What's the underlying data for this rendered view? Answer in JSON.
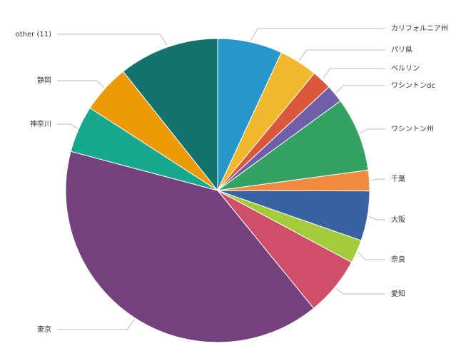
{
  "chart_data": {
    "type": "pie",
    "categories": [
      "カリフォルニア州",
      "パリ県",
      "ベルリン",
      "ワシントンdc",
      "ワシントン州",
      "千葉",
      "大阪",
      "奈良",
      "愛知",
      "東京",
      "神奈川",
      "静岡",
      "other (11)"
    ],
    "values": [
      6.9,
      4.1,
      2.1,
      1.9,
      7.9,
      2.2,
      5.3,
      2.5,
      6.3,
      40.1,
      5.0,
      5.2,
      10.7
    ],
    "colors": [
      "#2796cb",
      "#f2b82c",
      "#d9573a",
      "#6f5fa8",
      "#33a262",
      "#ef8a3f",
      "#3a62a3",
      "#a3cc3a",
      "#cf4f6b",
      "#74407e",
      "#17a88e",
      "#ec9a06",
      "#13746e"
    ]
  }
}
